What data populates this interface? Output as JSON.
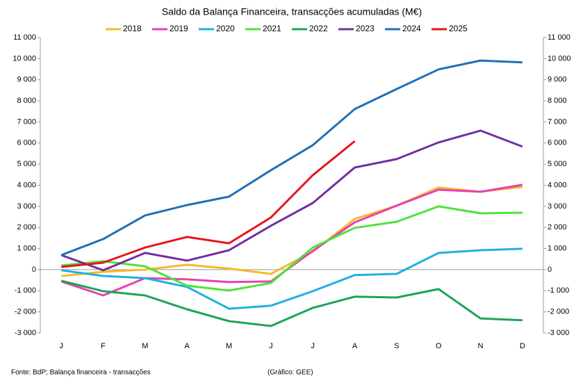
{
  "chart_data": {
    "type": "line",
    "title": "Saldo da Balança Financeira, transacções acumuladas (M€)",
    "categories": [
      "J",
      "F",
      "M",
      "A",
      "M",
      "J",
      "J",
      "A",
      "S",
      "O",
      "N",
      "D"
    ],
    "series": [
      {
        "name": "2018",
        "color": "#f7b927",
        "values": [
          -300,
          -100,
          0,
          230,
          50,
          -200,
          850,
          2400,
          3030,
          3890,
          3690,
          3920
        ]
      },
      {
        "name": "2019",
        "color": "#e83fb5",
        "values": [
          -560,
          -1220,
          -400,
          -460,
          -590,
          -560,
          890,
          2240,
          3030,
          3790,
          3690,
          4020
        ]
      },
      {
        "name": "2020",
        "color": "#1fb0e0",
        "values": [
          -30,
          -300,
          -400,
          -820,
          -1850,
          -1710,
          -1020,
          -260,
          -200,
          790,
          920,
          990
        ]
      },
      {
        "name": "2021",
        "color": "#4de33a",
        "values": [
          200,
          400,
          160,
          -760,
          -990,
          -630,
          1050,
          1980,
          2270,
          3000,
          2670,
          2700
        ]
      },
      {
        "name": "2022",
        "color": "#1ca35a",
        "values": [
          -530,
          -1020,
          -1220,
          -1880,
          -2440,
          -2670,
          -1810,
          -1280,
          -1320,
          -920,
          -2310,
          -2400
        ]
      },
      {
        "name": "2023",
        "color": "#7030a0",
        "values": [
          690,
          -30,
          790,
          430,
          920,
          2080,
          3160,
          4840,
          5240,
          6030,
          6590,
          5830
        ]
      },
      {
        "name": "2024",
        "color": "#1f6fb5",
        "values": [
          690,
          1450,
          2570,
          3060,
          3460,
          4710,
          5900,
          7610,
          8560,
          9490,
          9910,
          9820
        ]
      },
      {
        "name": "2025",
        "color": "#e8141b",
        "values": [
          130,
          330,
          1050,
          1550,
          1250,
          2470,
          4480,
          6090,
          null,
          null,
          null,
          null
        ]
      }
    ],
    "ylim": [
      -3000,
      11000
    ],
    "yticks": [
      {
        "value": -3000,
        "label": "-3 000"
      },
      {
        "value": -2000,
        "label": "-2 000"
      },
      {
        "value": -1000,
        "label": "-1 000"
      },
      0,
      {
        "value": 1000,
        "label": "1 000"
      },
      {
        "value": 2000,
        "label": "2 000"
      },
      {
        "value": 3000,
        "label": "3 000"
      },
      {
        "value": 4000,
        "label": "4 000"
      },
      {
        "value": 5000,
        "label": "5 000"
      },
      {
        "value": 6000,
        "label": "6 000"
      },
      {
        "value": 7000,
        "label": "7 000"
      },
      {
        "value": 8000,
        "label": "8 000"
      },
      {
        "value": 9000,
        "label": "9 000"
      },
      {
        "value": 10000,
        "label": "10 000"
      },
      {
        "value": 11000,
        "label": "11 000"
      }
    ],
    "y2lim": [
      -3000,
      11000
    ],
    "y2ticks": [
      {
        "value": -3000,
        "label": "-3 000"
      },
      {
        "value": -2000,
        "label": "-2 000"
      },
      {
        "value": -1000,
        "label": "-1 000"
      },
      0,
      {
        "value": 1000,
        "label": "1 000"
      },
      {
        "value": 2000,
        "label": "2 000"
      },
      {
        "value": 3000,
        "label": "3 000"
      },
      {
        "value": 4000,
        "label": "4 000"
      },
      {
        "value": 5000,
        "label": "5 000"
      },
      {
        "value": 6000,
        "label": "6 000"
      },
      {
        "value": 7000,
        "label": "7 000"
      },
      {
        "value": 8000,
        "label": "8 000"
      },
      {
        "value": 9000,
        "label": "9 000"
      },
      {
        "value": 10000,
        "label": "10 000"
      },
      {
        "value": 11000,
        "label": "11 000"
      }
    ],
    "grid": false,
    "legend": "top",
    "source": "Fonte: BdP; Balança financeira - transacções",
    "credit": "(Gráfico: GEE)"
  }
}
